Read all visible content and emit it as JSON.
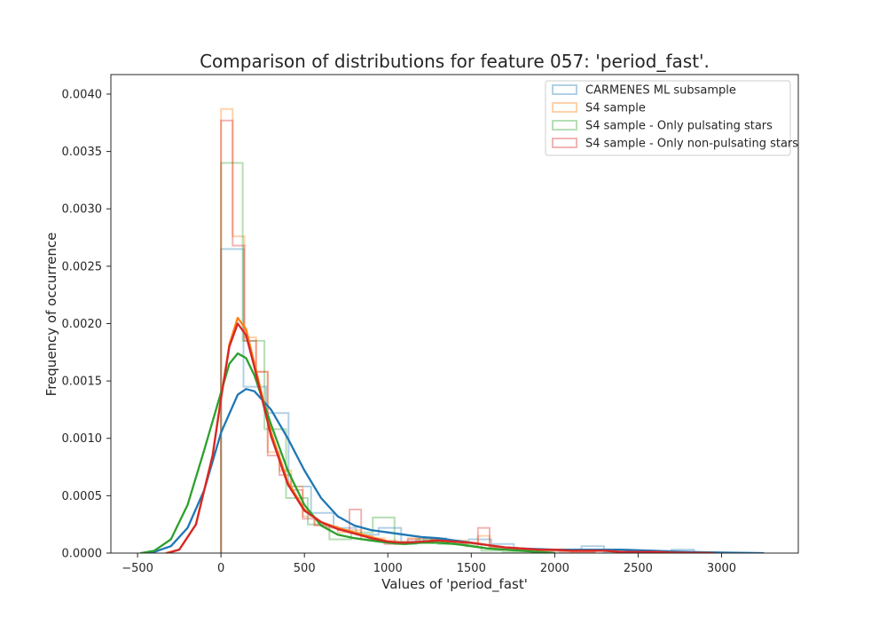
{
  "chart_data": {
    "type": "histogram+kde",
    "title": "Comparison of distributions for feature 057: 'period_fast'.",
    "xlabel": "Values of 'period_fast'",
    "ylabel": "Frequency of occurrence",
    "xlim": [
      -660,
      3460
    ],
    "ylim": [
      0,
      0.00417
    ],
    "xticks": [
      -500,
      0,
      500,
      1000,
      1500,
      2000,
      2500,
      3000
    ],
    "xtick_labels": [
      "−500",
      "0",
      "500",
      "1000",
      "1500",
      "2000",
      "2500",
      "3000"
    ],
    "yticks": [
      0,
      0.0005,
      0.001,
      0.0015,
      0.002,
      0.0025,
      0.003,
      0.0035,
      0.004
    ],
    "ytick_labels": [
      "0.0000",
      "0.0005",
      "0.0010",
      "0.0015",
      "0.0020",
      "0.0025",
      "0.0030",
      "0.0035",
      "0.0040"
    ],
    "grid": false,
    "legend_position": "top-right",
    "series": [
      {
        "name": "CARMENES ML subsample",
        "color": "#1f77b4",
        "hist": {
          "edges": [
            0,
            135,
            270,
            405,
            540,
            675,
            810,
            945,
            1080,
            1215,
            1350,
            1485,
            1620,
            1755,
            1890,
            2025,
            2160,
            2295,
            2430,
            2565,
            2700,
            2835
          ],
          "heights": [
            0.00265,
            0.00145,
            0.00122,
            0.00058,
            0.00035,
            0.00022,
            0.00016,
            0.00022,
            0.0001,
            0.00013,
            0.0001,
            0.00012,
            8e-05,
            3e-05,
            2e-05,
            2e-05,
            6e-05,
            1e-05,
            1e-05,
            1e-05,
            3e-05
          ]
        },
        "kde": {
          "x": [
            -480,
            -400,
            -300,
            -200,
            -100,
            0,
            100,
            150,
            200,
            300,
            400,
            500,
            600,
            700,
            800,
            900,
            1000,
            1100,
            1200,
            1300,
            1400,
            1500,
            1600,
            1700,
            1800,
            2000,
            2200,
            2400,
            2600,
            2800,
            3000,
            3250
          ],
          "y": [
            0,
            1e-05,
            6e-05,
            0.00022,
            0.00055,
            0.00105,
            0.00138,
            0.00143,
            0.00141,
            0.00125,
            0.001,
            0.00072,
            0.00048,
            0.00032,
            0.00024,
            0.0002,
            0.00018,
            0.00016,
            0.00014,
            0.00013,
            0.00011,
            9e-05,
            7e-05,
            5e-05,
            4e-05,
            3e-05,
            3e-05,
            3e-05,
            2e-05,
            1e-05,
            5e-06,
            0
          ]
        }
      },
      {
        "name": "S4 sample",
        "color": "#ff7f0e",
        "hist": {
          "edges": [
            0,
            70,
            140,
            210,
            280,
            350,
            420,
            490,
            560,
            630,
            700,
            770,
            840,
            910,
            980,
            1050,
            1120,
            1190,
            1260,
            1330,
            1400,
            1470,
            1540,
            1610,
            1680,
            1750,
            1820,
            1890,
            1960,
            2030,
            2100,
            2170,
            2240
          ],
          "heights": [
            0.00387,
            0.00276,
            0.00188,
            0.00158,
            0.00088,
            0.00072,
            0.00058,
            0.00032,
            0.00025,
            0.00022,
            0.00018,
            0.0002,
            0.00015,
            0.00013,
            0.00011,
            0.0001,
            0.00013,
            0.0001,
            0.00012,
            0.00011,
            0.00011,
            9e-05,
            0.00015,
            5e-05,
            4e-05,
            3e-05,
            3e-05,
            2e-05,
            2e-05,
            2e-05,
            1e-05,
            1e-05
          ]
        },
        "kde": {
          "x": [
            -330,
            -250,
            -150,
            -50,
            0,
            50,
            100,
            150,
            200,
            300,
            400,
            500,
            600,
            700,
            800,
            900,
            1000,
            1100,
            1200,
            1300,
            1400,
            1500,
            1600,
            1700,
            1800,
            1900,
            2000,
            2100,
            2200,
            2300,
            2400,
            2500,
            2600,
            2700,
            2800,
            2950
          ],
          "y": [
            0,
            3e-05,
            0.00025,
            0.00085,
            0.00135,
            0.00182,
            0.00205,
            0.00195,
            0.00165,
            0.00105,
            0.00062,
            0.00038,
            0.00027,
            0.00022,
            0.00018,
            0.00014,
            0.0001,
            9e-05,
            0.0001,
            0.00011,
            0.0001,
            9e-05,
            7e-05,
            5e-05,
            4e-05,
            3e-05,
            3e-05,
            2e-05,
            2e-05,
            2e-05,
            1e-05,
            1e-05,
            1e-05,
            5e-06,
            2e-06,
            0
          ]
        }
      },
      {
        "name": "S4 sample - Only pulsating stars",
        "color": "#2ca02c",
        "hist": {
          "edges": [
            0,
            130,
            260,
            390,
            520,
            650,
            780,
            910,
            1040,
            1170,
            1300,
            1430,
            1560,
            1690,
            1820,
            1950
          ],
          "heights": [
            0.0034,
            0.00185,
            0.00108,
            0.00048,
            0.00025,
            0.00012,
            0.00018,
            0.00031,
            8e-05,
            0.00012,
            8e-05,
            8e-05,
            2e-05,
            1e-05,
            1e-05
          ]
        },
        "kde": {
          "x": [
            -480,
            -400,
            -300,
            -200,
            -100,
            0,
            50,
            100,
            150,
            200,
            300,
            400,
            500,
            600,
            700,
            800,
            900,
            1000,
            1100,
            1200,
            1300,
            1400,
            1500,
            1600,
            1700,
            1800,
            1900,
            2000
          ],
          "y": [
            0,
            2e-05,
            0.00012,
            0.00042,
            0.0009,
            0.0014,
            0.00165,
            0.00174,
            0.0017,
            0.00155,
            0.00112,
            0.00072,
            0.00042,
            0.00024,
            0.00016,
            0.00013,
            0.00011,
            9e-05,
            8e-05,
            9e-05,
            9e-05,
            8e-05,
            6e-05,
            4e-05,
            3e-05,
            2e-05,
            1e-05,
            0
          ]
        }
      },
      {
        "name": "S4 sample - Only non-pulsating stars",
        "color": "#d62728",
        "hist": {
          "edges": [
            0,
            70,
            140,
            210,
            280,
            350,
            420,
            490,
            560,
            630,
            700,
            770,
            840,
            910,
            980,
            1050,
            1120,
            1190,
            1260,
            1330,
            1400,
            1470,
            1540,
            1610,
            1680,
            1750,
            1820,
            1890,
            1960,
            2030,
            2100,
            2170,
            2240
          ],
          "heights": [
            0.00377,
            0.00268,
            0.00185,
            0.00158,
            0.00085,
            0.00068,
            0.00055,
            0.0003,
            0.00024,
            0.00023,
            0.0002,
            0.00038,
            0.00012,
            0.00011,
            8e-05,
            8e-05,
            0.00012,
            0.00013,
            0.00012,
            0.0001,
            8e-05,
            6e-05,
            0.00022,
            5e-05,
            4e-05,
            3e-05,
            3e-05,
            2e-05,
            2e-05,
            1e-05,
            1e-05,
            1e-05
          ]
        },
        "kde": {
          "x": [
            -320,
            -250,
            -150,
            -50,
            0,
            50,
            100,
            150,
            200,
            300,
            400,
            500,
            600,
            700,
            800,
            900,
            1000,
            1100,
            1200,
            1300,
            1400,
            1500,
            1600,
            1700,
            1800,
            1900,
            2000,
            2100,
            2200,
            2300,
            2400,
            2500,
            2600,
            2700,
            2800,
            2950
          ],
          "y": [
            0,
            3e-05,
            0.00025,
            0.00085,
            0.00135,
            0.0018,
            0.002,
            0.0019,
            0.00162,
            0.00102,
            0.0006,
            0.00037,
            0.00027,
            0.00021,
            0.00017,
            0.00013,
            0.0001,
            9e-05,
            0.0001,
            0.00011,
            0.0001,
            9e-05,
            7e-05,
            5e-05,
            4e-05,
            3e-05,
            3e-05,
            2e-05,
            2e-05,
            2e-05,
            1e-05,
            1e-05,
            1e-05,
            5e-06,
            2e-06,
            0
          ]
        }
      }
    ]
  }
}
